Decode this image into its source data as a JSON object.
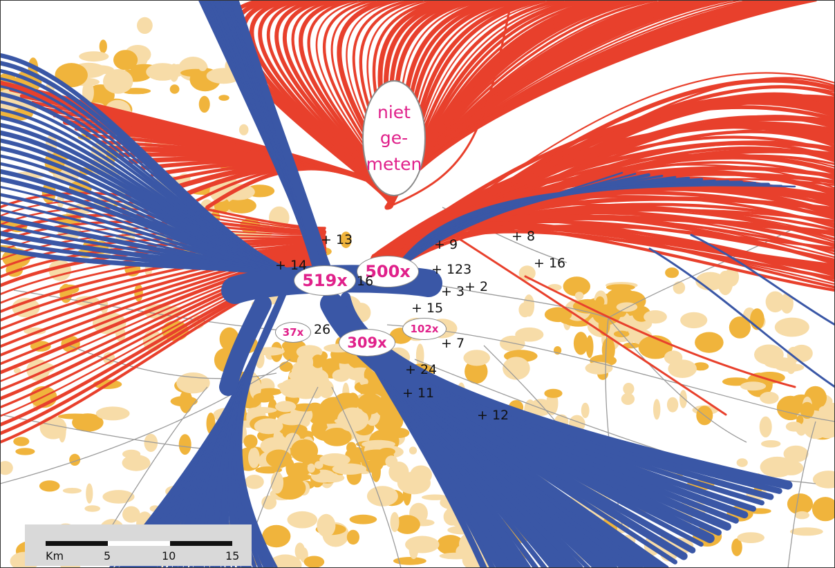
{
  "colors": {
    "background": "#ffffff",
    "urban_light": "#f7dca8",
    "urban_dark": "#f0b43c",
    "road": "#9a9a9a",
    "track_departure": "#e8402c",
    "track_arrival": "#3a57a6",
    "count_text": "#e0208a",
    "scalebar_bg": "#d9d9d9"
  },
  "stations": [
    {
      "label": "+ 13"
    },
    {
      "label": "+ 9"
    },
    {
      "label": "+ 8"
    },
    {
      "label": "+ 14"
    },
    {
      "label": "+ 16"
    },
    {
      "label": "+ 1"
    },
    {
      "label": "23"
    },
    {
      "label": "+ 2"
    },
    {
      "label": "+ 3"
    },
    {
      "label": "16"
    },
    {
      "label": "+ 15"
    },
    {
      "label": "26"
    },
    {
      "label": "+ 7"
    },
    {
      "label": "+ 24"
    },
    {
      "label": "+ 11"
    },
    {
      "label": "+ 12"
    }
  ],
  "counts": [
    {
      "label": "519x"
    },
    {
      "label": "500x"
    },
    {
      "label": "309x"
    },
    {
      "label": "37x"
    },
    {
      "label": "102x"
    }
  ],
  "unmeasured_label": "niet\nge-\nmeten",
  "scale_bar": {
    "unit": "Km",
    "ticks": [
      "5",
      "10",
      "15"
    ]
  }
}
